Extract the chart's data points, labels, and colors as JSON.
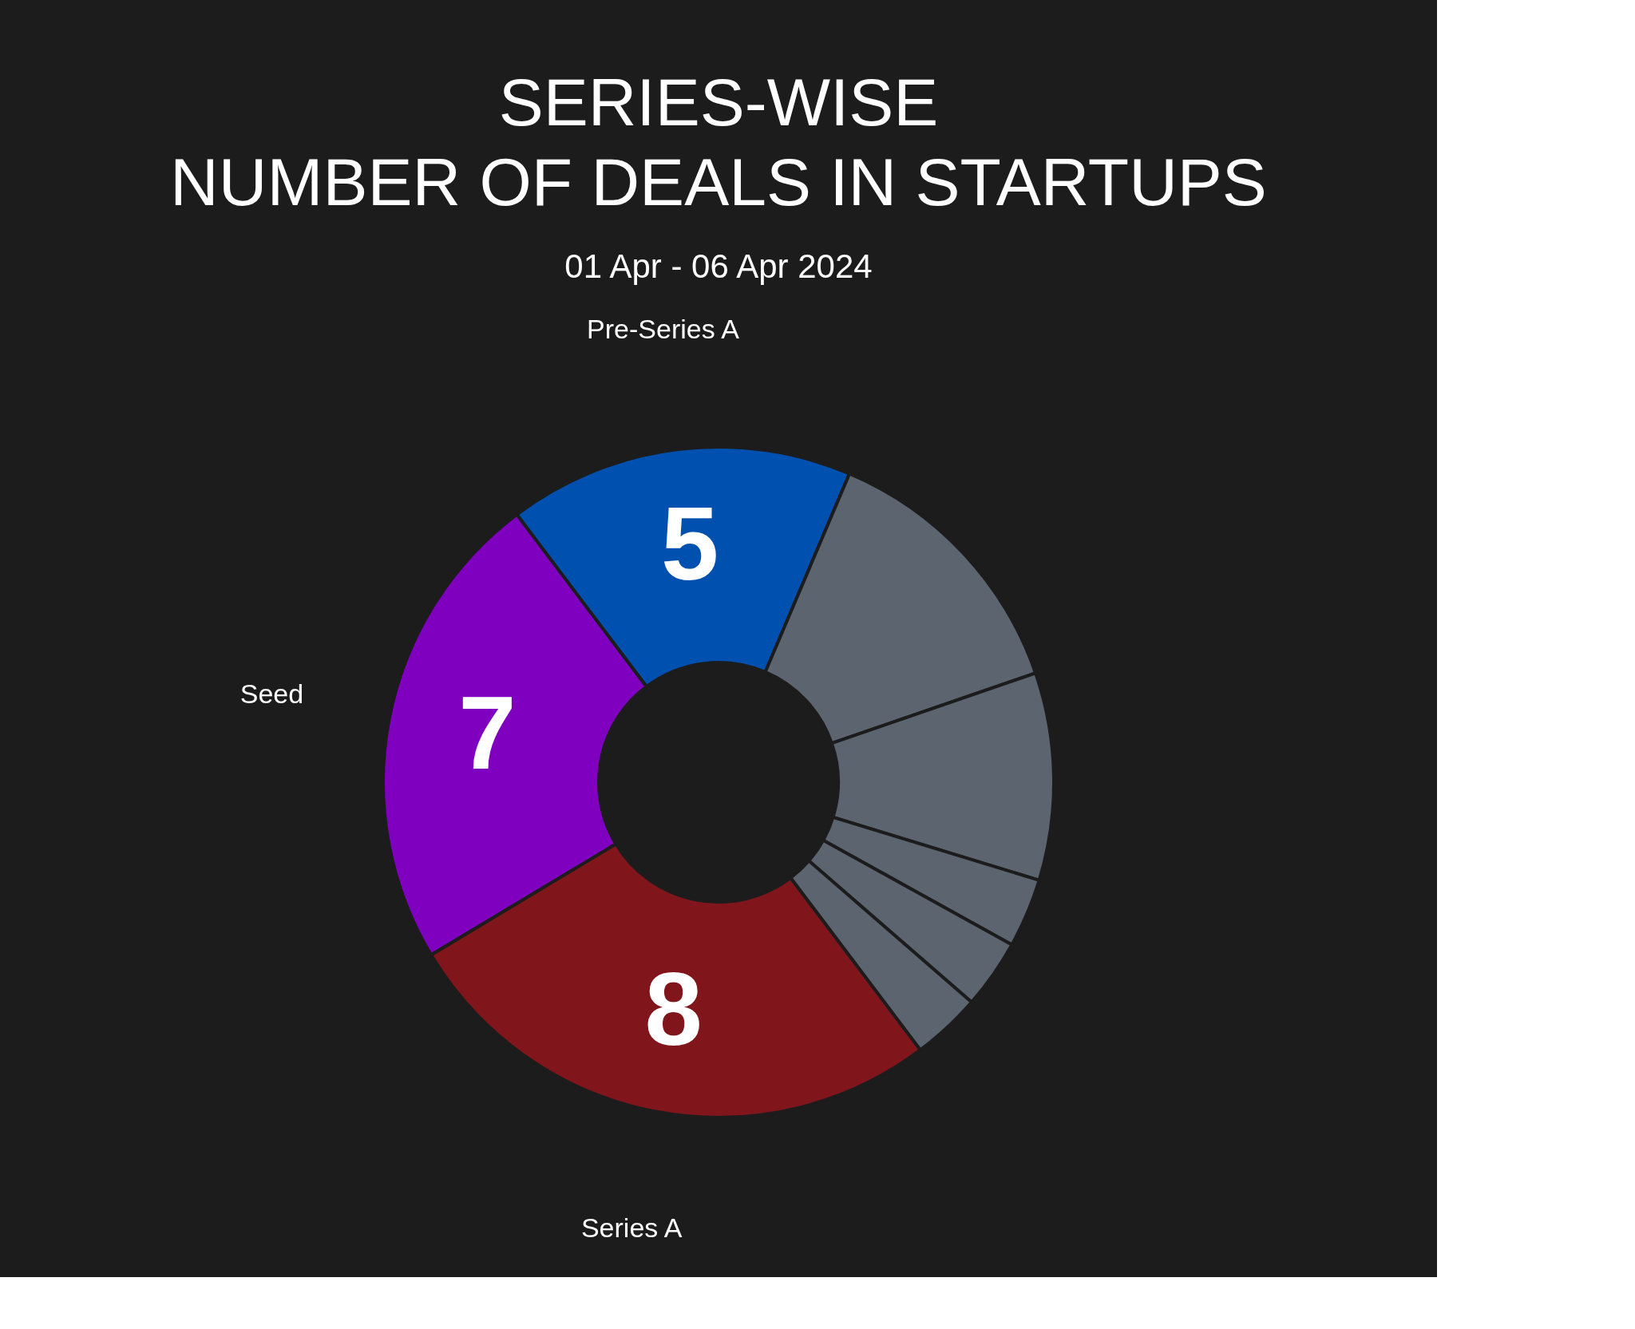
{
  "chart_data": {
    "type": "donut",
    "title": [
      "SERIES-WISE",
      "NUMBER OF DEALS IN STARTUPS"
    ],
    "subtitle": "01 Apr - 06 Apr 2024",
    "categories": [
      "Pre-Series A",
      null,
      null,
      null,
      null,
      null,
      "Series A",
      "Seed"
    ],
    "values": [
      5,
      4,
      3,
      1,
      1,
      1,
      8,
      7
    ],
    "colors": [
      "#0050b0",
      "#5c6470",
      "#5c6470",
      "#5c6470",
      "#5c6470",
      "#5c6470",
      "#80161c",
      "#8000c0"
    ],
    "value_labels": [
      "5",
      null,
      null,
      null,
      null,
      null,
      "8",
      "7"
    ],
    "legend": false
  }
}
